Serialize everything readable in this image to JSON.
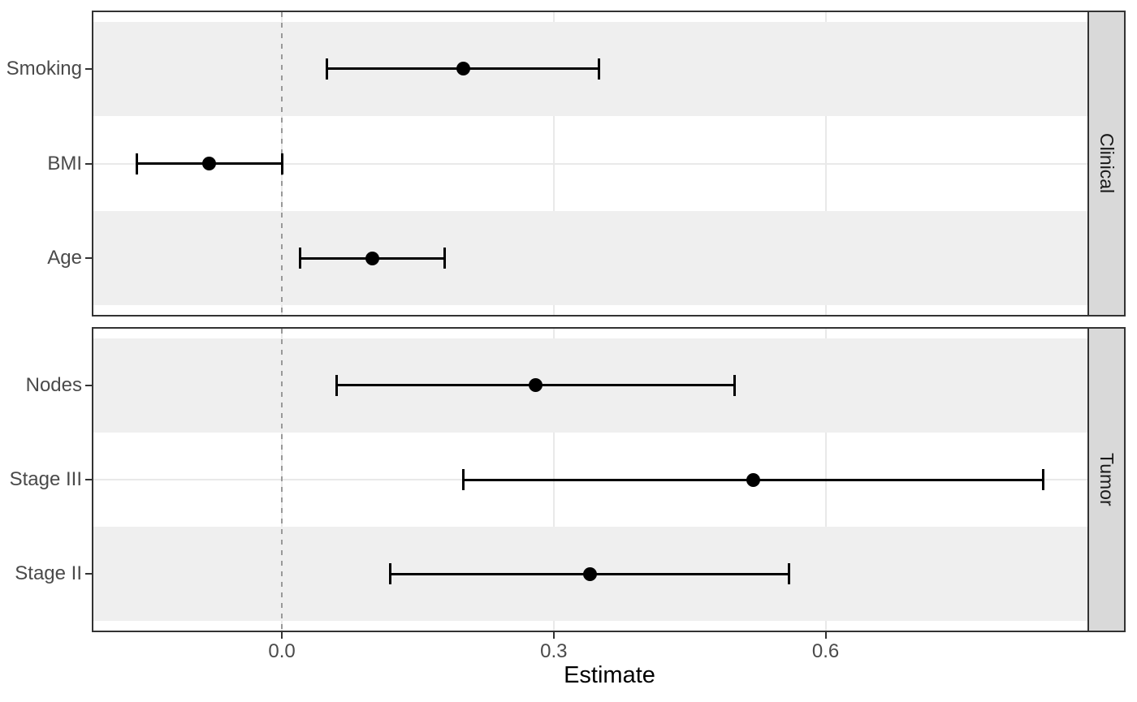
{
  "chart_data": {
    "type": "scatter",
    "subtype": "forest-plot-with-error-bars",
    "title": "",
    "xlabel": "Estimate",
    "ylabel": "",
    "xlim": [
      -0.208,
      0.889
    ],
    "x_ticks": [
      0.0,
      0.3,
      0.6
    ],
    "x_tick_labels": [
      "0.0",
      "0.3",
      "0.6"
    ],
    "reference_line_x": 0.0,
    "grid": "major gridlines only, light gray, hidden under row stripes",
    "legend_position": "none",
    "facets": [
      {
        "label": "Clinical",
        "rows": [
          {
            "label": "Smoking",
            "estimate": 0.2,
            "ci_low": 0.05,
            "ci_high": 0.35,
            "striped": true
          },
          {
            "label": "BMI",
            "estimate": -0.08,
            "ci_low": -0.16,
            "ci_high": 0.0,
            "striped": false
          },
          {
            "label": "Age",
            "estimate": 0.1,
            "ci_low": 0.02,
            "ci_high": 0.18,
            "striped": true
          }
        ]
      },
      {
        "label": "Tumor",
        "rows": [
          {
            "label": "Nodes",
            "estimate": 0.28,
            "ci_low": 0.06,
            "ci_high": 0.5,
            "striped": true
          },
          {
            "label": "Stage III",
            "estimate": 0.52,
            "ci_low": 0.2,
            "ci_high": 0.84,
            "striped": false
          },
          {
            "label": "Stage II",
            "estimate": 0.34,
            "ci_low": 0.12,
            "ci_high": 0.56,
            "striped": true
          }
        ]
      }
    ],
    "colors": {
      "background": "#FFFFFF",
      "row_stripe": "#EFEFEF",
      "gridline": "#E9E9E9",
      "strip_fill": "#D9D9D9",
      "panel_border": "#333333",
      "axis_text": "#4A4A4A",
      "axis_title": "#000000",
      "strip_text": "#1A1A1A",
      "reference_line": "#999999",
      "data": "#000000"
    }
  }
}
